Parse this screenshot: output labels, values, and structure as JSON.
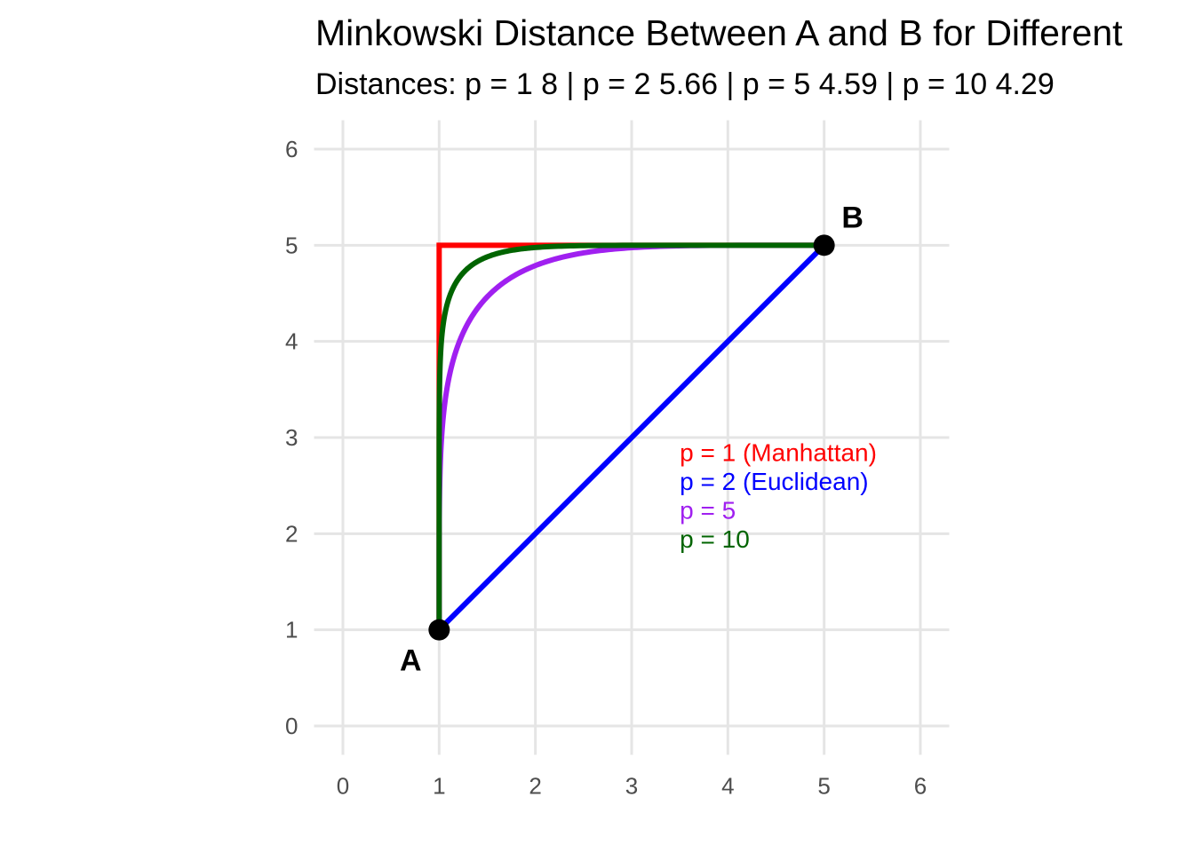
{
  "chart_data": {
    "type": "line",
    "title": "Minkowski Distance Between A and B for Different",
    "subtitle": "Distances: p = 1 8 | p = 2 5.66 | p = 5 4.59 | p = 10 4.29",
    "xlim": [
      -0.3,
      6.3
    ],
    "ylim": [
      -0.3,
      6.3
    ],
    "x_ticks": [
      0,
      1,
      2,
      3,
      4,
      5,
      6
    ],
    "y_ticks": [
      0,
      1,
      2,
      3,
      4,
      5,
      6
    ],
    "grid": true,
    "points": [
      {
        "label": "A",
        "x": 1,
        "y": 1
      },
      {
        "label": "B",
        "x": 5,
        "y": 5
      }
    ],
    "series": [
      {
        "label": "p = 1 (Manhattan)",
        "p": 1,
        "color": "#ff0000",
        "x": [
          1,
          1,
          5
        ],
        "y": [
          1,
          5,
          5
        ]
      },
      {
        "label": "p = 2 (Euclidean)",
        "p": 2,
        "color": "#0000ff",
        "x": [
          1,
          5
        ],
        "y": [
          1,
          5
        ]
      },
      {
        "label": "p = 5",
        "p": 5,
        "color": "#a020f0",
        "curve": "superellipse"
      },
      {
        "label": "p = 10",
        "p": 10,
        "color": "#006400",
        "curve": "superellipse"
      }
    ],
    "annotation_position": "right-middle"
  }
}
